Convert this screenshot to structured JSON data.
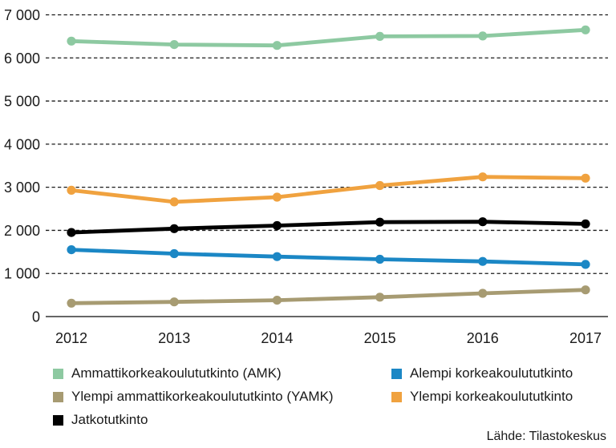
{
  "chart_data": {
    "type": "line",
    "title": "",
    "xlabel": "",
    "ylabel": "",
    "x": [
      "2012",
      "2013",
      "2014",
      "2015",
      "2016",
      "2017"
    ],
    "series": [
      {
        "name": "Ammattikorkeakoulututkinto (AMK)",
        "color": "#8dc9a1",
        "values": [
          6390,
          6310,
          6290,
          6500,
          6510,
          6650
        ]
      },
      {
        "name": "Alempi korkeakoulututkinto",
        "color": "#1b87c5",
        "values": [
          1550,
          1460,
          1390,
          1330,
          1280,
          1210
        ]
      },
      {
        "name": "Ylempi ammattikorkeakoulututkinto (YAMK)",
        "color": "#a79b72",
        "values": [
          310,
          340,
          380,
          450,
          540,
          620
        ]
      },
      {
        "name": "Ylempi korkeakoulututkinto",
        "color": "#f0a23f",
        "values": [
          2930,
          2660,
          2770,
          3040,
          3240,
          3210
        ]
      },
      {
        "name": "Jatkotutkinto",
        "color": "#000000",
        "values": [
          1950,
          2040,
          2110,
          2190,
          2200,
          2150
        ]
      }
    ],
    "y_ticks": [
      {
        "label": "0",
        "value": 0
      },
      {
        "label": "1 000",
        "value": 1000
      },
      {
        "label": "2 000",
        "value": 2000
      },
      {
        "label": "3 000",
        "value": 3000
      },
      {
        "label": "4 000",
        "value": 4000
      },
      {
        "label": "5 000",
        "value": 5000
      },
      {
        "label": "6 000",
        "value": 6000
      },
      {
        "label": "7 000",
        "value": 7000
      }
    ],
    "ylim": [
      0,
      7000
    ],
    "grid": "horizontal-dashed",
    "grid_color": "#1a1a1a",
    "axis_color": "#333333",
    "text_color": "#1a1a1a",
    "legend_position": "bottom",
    "legend_columns": [
      [
        0,
        2,
        4
      ],
      [
        1,
        3
      ]
    ],
    "source": "Lähde: Tilastokeskus"
  }
}
